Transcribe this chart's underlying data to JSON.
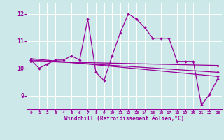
{
  "xlabel": "Windchill (Refroidissement éolien,°C)",
  "bg_color": "#cce8e8",
  "grid_color": "#ffffff",
  "line_color": "#990099",
  "xlim": [
    -0.5,
    23.5
  ],
  "ylim": [
    8.5,
    12.4
  ],
  "yticks": [
    9,
    10,
    11,
    12
  ],
  "xticks": [
    0,
    1,
    2,
    3,
    4,
    5,
    6,
    7,
    8,
    9,
    10,
    11,
    12,
    13,
    14,
    15,
    16,
    17,
    18,
    19,
    20,
    21,
    22,
    23
  ],
  "series1": [
    10.3,
    10.0,
    10.15,
    10.3,
    10.3,
    10.45,
    10.3,
    11.8,
    9.85,
    9.55,
    10.45,
    11.3,
    12.0,
    11.8,
    11.5,
    11.1,
    11.1,
    11.1,
    10.25,
    10.25,
    10.25,
    8.65,
    9.05,
    9.6
  ],
  "series2_x": [
    0,
    23
  ],
  "series2_y": [
    10.35,
    9.7
  ],
  "series3_x": [
    0,
    23
  ],
  "series3_y": [
    10.3,
    9.85
  ],
  "series4_x": [
    0,
    23
  ],
  "series4_y": [
    10.25,
    10.1
  ]
}
